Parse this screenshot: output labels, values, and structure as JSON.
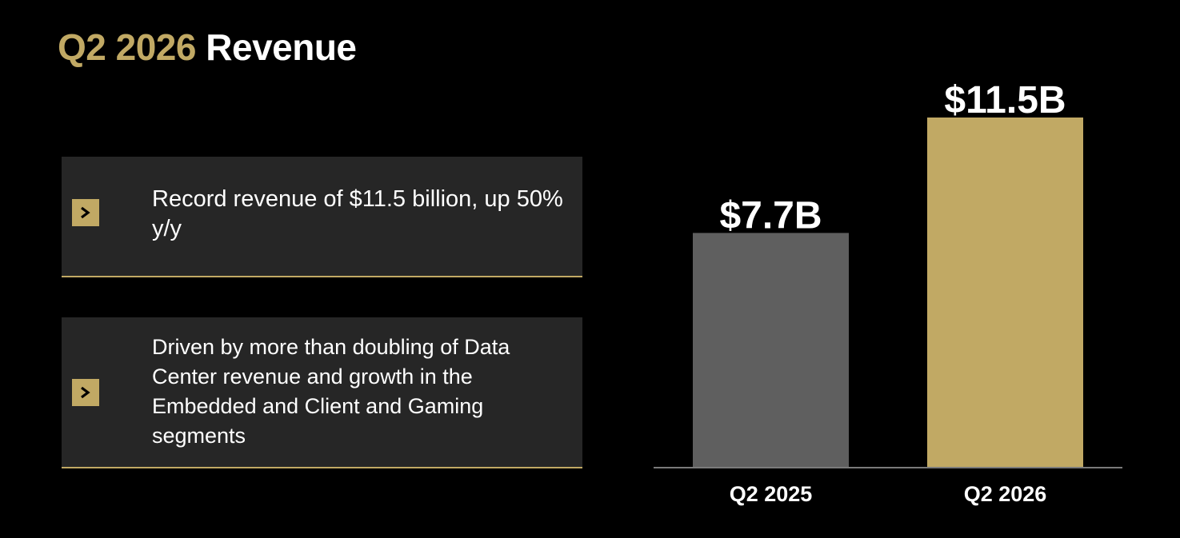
{
  "title": {
    "accent": "Q2 2026",
    "main": "Revenue"
  },
  "bullets": [
    {
      "icon": "chevron-right-icon",
      "text": "Record revenue of $11.5 billion, up 50% y/y"
    },
    {
      "icon": "chevron-right-icon",
      "text": "Driven by more than doubling of Data Center revenue and growth in the Embedded and Client and Gaming segments"
    }
  ],
  "colors": {
    "accent": "#c1a964",
    "background": "#000000",
    "card": "#262626",
    "bar_prior": "#5f5f5f",
    "bar_current": "#c1a964"
  },
  "chart_data": {
    "type": "bar",
    "categories": [
      "Q2 2025",
      "Q2 2026"
    ],
    "values": [
      7.7,
      11.5
    ],
    "data_labels": [
      "$7.7B",
      "$11.5B"
    ],
    "bar_colors": [
      "#5f5f5f",
      "#c1a964"
    ],
    "title": "",
    "xlabel": "",
    "ylabel": "",
    "grid": false,
    "legend": "none"
  }
}
